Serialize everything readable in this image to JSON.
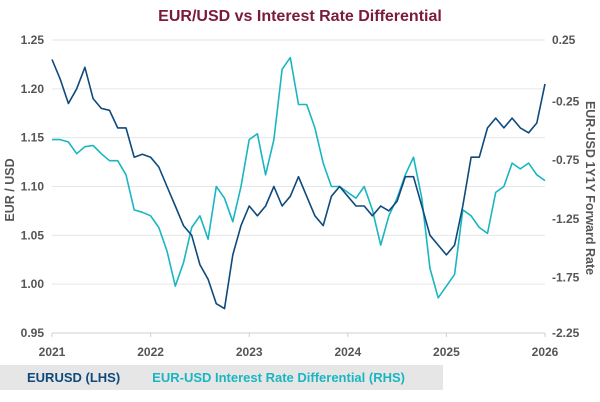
{
  "chart_data": {
    "type": "line",
    "title": "EUR/USD vs Interest Rate Differential",
    "ylabel_left": "EUR / USD",
    "ylabel_right": "EUR-USD 1Y1Y Forward Rate",
    "xlim": [
      "2021-01",
      "2026-01"
    ],
    "ylim_left": [
      0.95,
      1.25
    ],
    "ylim_right": [
      -2.25,
      0.25
    ],
    "left_ticks": [
      "1.25",
      "1.20",
      "1.15",
      "1.10",
      "1.05",
      "1.00",
      "0.95"
    ],
    "right_ticks": [
      "0.25",
      "-0.25",
      "-0.75",
      "-1.25",
      "-1.75",
      "-2.25"
    ],
    "x_ticks": [
      "2021",
      "2022",
      "2023",
      "2024",
      "2025",
      "2026"
    ],
    "grid": true,
    "legend_placement": "bottom",
    "series": [
      {
        "name": "EURUSD (LHS)",
        "axis": "left",
        "color": "#0e4a7c",
        "start": "2021-01",
        "frequency": "monthly",
        "values": [
          1.23,
          1.21,
          1.185,
          1.2,
          1.222,
          1.19,
          1.18,
          1.178,
          1.16,
          1.16,
          1.13,
          1.133,
          1.13,
          1.12,
          1.1,
          1.08,
          1.06,
          1.05,
          1.02,
          1.005,
          0.98,
          0.975,
          1.03,
          1.06,
          1.08,
          1.07,
          1.08,
          1.1,
          1.08,
          1.09,
          1.11,
          1.09,
          1.07,
          1.06,
          1.09,
          1.1,
          1.09,
          1.08,
          1.08,
          1.07,
          1.08,
          1.075,
          1.085,
          1.11,
          1.11,
          1.08,
          1.05,
          1.04,
          1.03,
          1.04,
          1.08,
          1.13,
          1.13,
          1.16,
          1.17,
          1.16,
          1.17,
          1.16,
          1.155,
          1.165,
          1.205
        ]
      },
      {
        "name": "EUR-USD Interest Rate Differential (RHS)",
        "axis": "right",
        "color": "#19b6c2",
        "start": "2021-01",
        "frequency": "monthly",
        "values": [
          -0.6,
          -0.6,
          -0.62,
          -0.72,
          -0.66,
          -0.65,
          -0.72,
          -0.78,
          -0.78,
          -0.9,
          -1.2,
          -1.22,
          -1.25,
          -1.35,
          -1.55,
          -1.85,
          -1.65,
          -1.35,
          -1.25,
          -1.45,
          -1.0,
          -1.1,
          -1.3,
          -1.0,
          -0.6,
          -0.55,
          -0.9,
          -0.6,
          0.0,
          0.1,
          -0.3,
          -0.3,
          -0.5,
          -0.8,
          -1.0,
          -1.0,
          -1.05,
          -1.1,
          -1.0,
          -1.2,
          -1.5,
          -1.25,
          -1.1,
          -0.9,
          -0.75,
          -1.1,
          -1.7,
          -1.95,
          -1.85,
          -1.75,
          -1.2,
          -1.25,
          -1.35,
          -1.4,
          -1.05,
          -1.0,
          -0.8,
          -0.85,
          -0.8,
          -0.9,
          -0.95
        ]
      }
    ]
  },
  "legend": {
    "left_label": "EURUSD (LHS)",
    "right_label": "EUR-USD Interest Rate Differential (RHS)"
  }
}
